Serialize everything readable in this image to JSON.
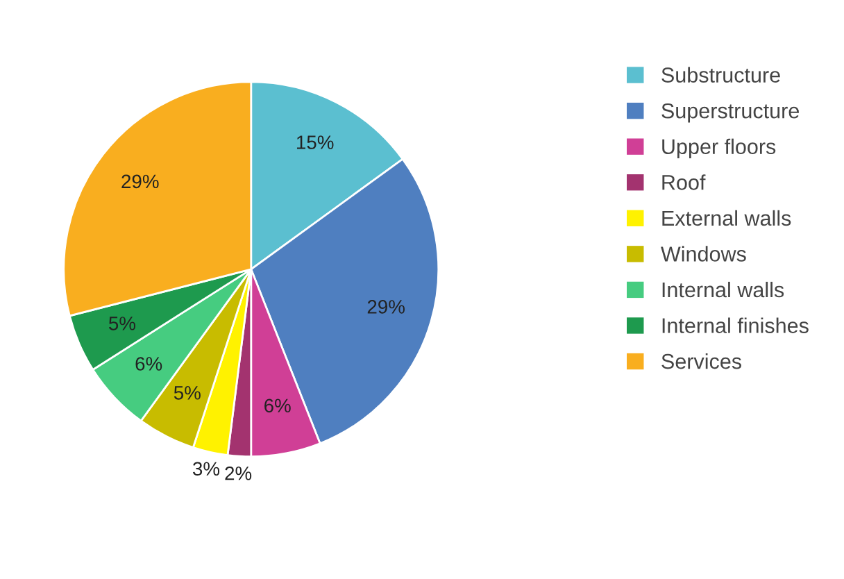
{
  "chart_data": {
    "type": "pie",
    "categories": [
      "Substructure",
      "Superstructure",
      "Upper floors",
      "Roof",
      "External walls",
      "Windows",
      "Internal walls",
      "Internal finishes",
      "Services"
    ],
    "values": [
      15,
      29,
      6,
      2,
      3,
      5,
      6,
      5,
      29
    ],
    "colors": [
      "#5bbfd0",
      "#4f7fc0",
      "#d03f96",
      "#a3336f",
      "#fff200",
      "#c8bc00",
      "#46cc80",
      "#1e9a4e",
      "#f9ae1f"
    ],
    "value_labels": [
      "15%",
      "29%",
      "6%",
      "2%",
      "3%",
      "5%",
      "6%",
      "5%",
      "29%"
    ],
    "legend": "right"
  }
}
